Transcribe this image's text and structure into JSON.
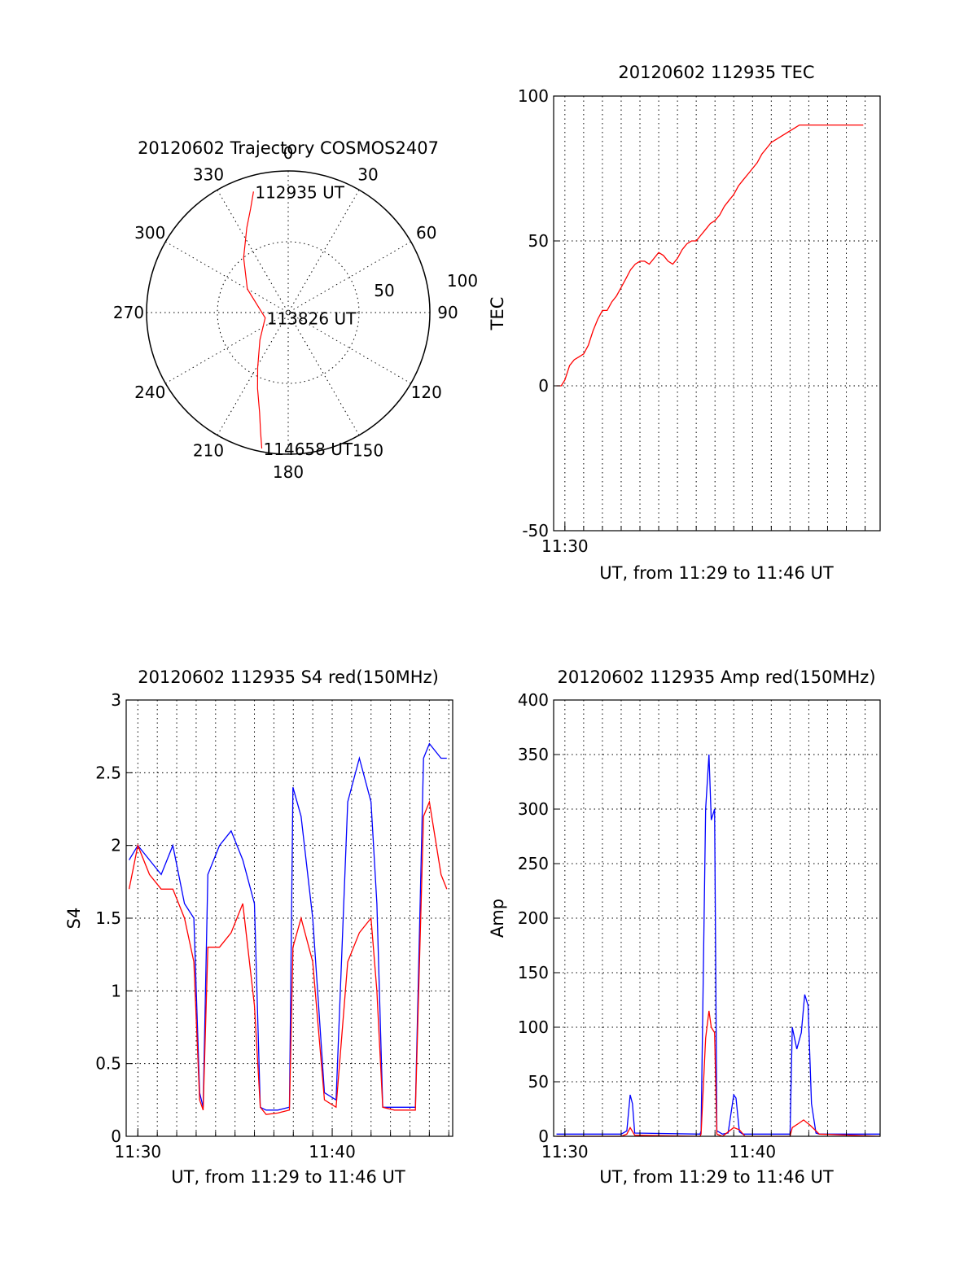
{
  "chart_data": [
    {
      "type": "polar",
      "title": "20120602 Trajectory COSMOS2407",
      "azimuth_labels": [
        "0",
        "30",
        "60",
        "90",
        "120",
        "150",
        "180",
        "210",
        "240",
        "270",
        "300",
        "330"
      ],
      "radial_labels": [
        "50",
        "100"
      ],
      "series": [
        {
          "color": "#ff0000",
          "points": [
            {
              "az": 344,
              "el": 10
            },
            {
              "az": 340,
              "el": 20
            },
            {
              "az": 334,
              "el": 30
            },
            {
              "az": 321,
              "el": 45
            },
            {
              "az": 300,
              "el": 60
            },
            {
              "az": 257,
              "el": 75
            },
            {
              "az": 226,
              "el": 65
            },
            {
              "az": 209,
              "el": 50
            },
            {
              "az": 202,
              "el": 38
            },
            {
              "az": 196,
              "el": 24
            },
            {
              "az": 193,
              "el": 12
            },
            {
              "az": 191,
              "el": 2
            }
          ]
        }
      ],
      "annotations": [
        {
          "text": "112935 UT",
          "az": 344,
          "el": 10
        },
        {
          "text": "113826 UT",
          "az": 257,
          "el": 75
        },
        {
          "text": "114658 UT",
          "az": 191,
          "el": 2
        }
      ]
    },
    {
      "type": "line",
      "title": "20120602 112935 TEC",
      "xlabel": "UT, from 11:29 to 11:46 UT",
      "ylabel": "TEC",
      "xlim": [
        11.49,
        11.78
      ],
      "ylim": [
        -50,
        100
      ],
      "yticks": [
        -50,
        0,
        50,
        100
      ],
      "xticks": [
        {
          "value": 11.5,
          "label": "11:30"
        }
      ],
      "grid": true,
      "series": [
        {
          "color": "#ff0000",
          "x": [
            11.4925,
            11.4967,
            11.5,
            11.5042,
            11.5083,
            11.5125,
            11.5167,
            11.5208,
            11.525,
            11.5292,
            11.5333,
            11.5375,
            11.5417,
            11.5458,
            11.55,
            11.5542,
            11.5583,
            11.5625,
            11.5667,
            11.5708,
            11.575,
            11.5792,
            11.5833,
            11.5875,
            11.5917,
            11.5958,
            11.6,
            11.6042,
            11.6083,
            11.6125,
            11.6167,
            11.6208,
            11.625,
            11.6292,
            11.6333,
            11.6375,
            11.6417,
            11.6458,
            11.65,
            11.6542,
            11.6583,
            11.6625,
            11.6667,
            11.6708,
            11.675,
            11.6792,
            11.6833,
            11.6875,
            11.6917,
            11.6958,
            11.7,
            11.7042,
            11.7083,
            11.7125,
            11.7167,
            11.7208,
            11.725,
            11.7292,
            11.7333,
            11.7375,
            11.7417,
            11.7458,
            11.75,
            11.7542,
            11.7583,
            11.7625,
            11.765
          ],
          "y": [
            0,
            0,
            2,
            7,
            9,
            10,
            11,
            14,
            19,
            23,
            26,
            26,
            29,
            31,
            34,
            37,
            40,
            42,
            43,
            43,
            42,
            44,
            46,
            45,
            43,
            42,
            44,
            47,
            49,
            50,
            50,
            52,
            54,
            56,
            57,
            59,
            62,
            64,
            66,
            69,
            71,
            73,
            75,
            77,
            80,
            82,
            84,
            85,
            86,
            87,
            88,
            89,
            90,
            90,
            90,
            90,
            90,
            90,
            90,
            90,
            90,
            90,
            90,
            90,
            90,
            90,
            90
          ]
        }
      ]
    },
    {
      "type": "line",
      "title": "20120602 112935 S4 red(150MHz)",
      "xlabel": "UT, from 11:29 to 11:46 UT",
      "ylabel": "S4",
      "xlim": [
        11.49,
        11.77
      ],
      "ylim": [
        0,
        3
      ],
      "yticks": [
        0,
        0.5,
        1,
        1.5,
        2,
        2.5,
        3
      ],
      "ytick_labels": [
        "0",
        "0.5",
        "1",
        "1.5",
        "2",
        "2.5",
        "3"
      ],
      "xticks": [
        {
          "value": 11.5,
          "label": "11:30"
        },
        {
          "value": 11.6667,
          "label": "11:40"
        }
      ],
      "grid": true,
      "series": [
        {
          "color": "#0000ff",
          "x": [
            11.4925,
            11.5,
            11.51,
            11.52,
            11.53,
            11.54,
            11.548,
            11.553,
            11.556,
            11.56,
            11.57,
            11.58,
            11.59,
            11.6,
            11.605,
            11.61,
            11.62,
            11.63,
            11.633,
            11.64,
            11.65,
            11.66,
            11.67,
            11.68,
            11.69,
            11.7,
            11.705,
            11.71,
            11.72,
            11.73,
            11.738,
            11.745,
            11.75,
            11.76,
            11.765
          ],
          "y": [
            1.9,
            2.0,
            1.9,
            1.8,
            2.0,
            1.6,
            1.5,
            0.3,
            0.2,
            1.8,
            2.0,
            2.1,
            1.9,
            1.6,
            0.2,
            0.18,
            0.18,
            0.2,
            2.4,
            2.2,
            1.5,
            0.3,
            0.25,
            2.3,
            2.6,
            2.3,
            1.6,
            0.2,
            0.2,
            0.2,
            0.2,
            2.6,
            2.7,
            2.6,
            2.6
          ]
        },
        {
          "color": "#ff0000",
          "x": [
            11.4925,
            11.5,
            11.51,
            11.52,
            11.53,
            11.54,
            11.548,
            11.553,
            11.556,
            11.56,
            11.57,
            11.58,
            11.59,
            11.6,
            11.605,
            11.61,
            11.62,
            11.63,
            11.633,
            11.64,
            11.65,
            11.66,
            11.67,
            11.68,
            11.69,
            11.7,
            11.705,
            11.71,
            11.72,
            11.73,
            11.738,
            11.745,
            11.75,
            11.76,
            11.765
          ],
          "y": [
            1.7,
            2.0,
            1.8,
            1.7,
            1.7,
            1.5,
            1.2,
            0.25,
            0.18,
            1.3,
            1.3,
            1.4,
            1.6,
            0.9,
            0.2,
            0.15,
            0.16,
            0.18,
            1.3,
            1.5,
            1.2,
            0.25,
            0.2,
            1.2,
            1.4,
            1.5,
            1.0,
            0.2,
            0.18,
            0.18,
            0.18,
            2.2,
            2.3,
            1.8,
            1.7
          ]
        }
      ]
    },
    {
      "type": "line",
      "title": "20120602 112935 Amp red(150MHz)",
      "xlabel": "UT, from 11:29 to 11:46 UT",
      "ylabel": "Amp",
      "xlim": [
        11.49,
        11.78
      ],
      "ylim": [
        0,
        400
      ],
      "yticks": [
        0,
        50,
        100,
        150,
        200,
        250,
        300,
        350,
        400
      ],
      "xticks": [
        {
          "value": 11.5,
          "label": "11:30"
        },
        {
          "value": 11.6667,
          "label": "11:40"
        }
      ],
      "grid": true,
      "series": [
        {
          "color": "#0000ff",
          "x": [
            11.4925,
            11.55,
            11.555,
            11.558,
            11.56,
            11.562,
            11.62,
            11.621,
            11.625,
            11.628,
            11.63,
            11.633,
            11.635,
            11.64,
            11.645,
            11.65,
            11.652,
            11.655,
            11.658,
            11.662,
            11.7,
            11.702,
            11.706,
            11.71,
            11.713,
            11.716,
            11.719,
            11.723,
            11.726,
            11.78
          ],
          "y": [
            2,
            2,
            5,
            38,
            30,
            3,
            2,
            5,
            300,
            350,
            290,
            300,
            5,
            2,
            3,
            38,
            35,
            4,
            2,
            2,
            2,
            100,
            80,
            95,
            130,
            120,
            30,
            3,
            2,
            2
          ]
        },
        {
          "color": "#ff0000",
          "x": [
            11.4925,
            11.55,
            11.555,
            11.558,
            11.562,
            11.62,
            11.621,
            11.625,
            11.628,
            11.63,
            11.633,
            11.635,
            11.64,
            11.65,
            11.655,
            11.66,
            11.7,
            11.702,
            11.708,
            11.712,
            11.718,
            11.726,
            11.78
          ],
          "y": [
            0,
            0,
            2,
            8,
            1,
            0,
            2,
            90,
            115,
            100,
            95,
            2,
            0,
            8,
            6,
            0,
            0,
            8,
            12,
            15,
            10,
            2,
            0
          ]
        }
      ]
    }
  ]
}
